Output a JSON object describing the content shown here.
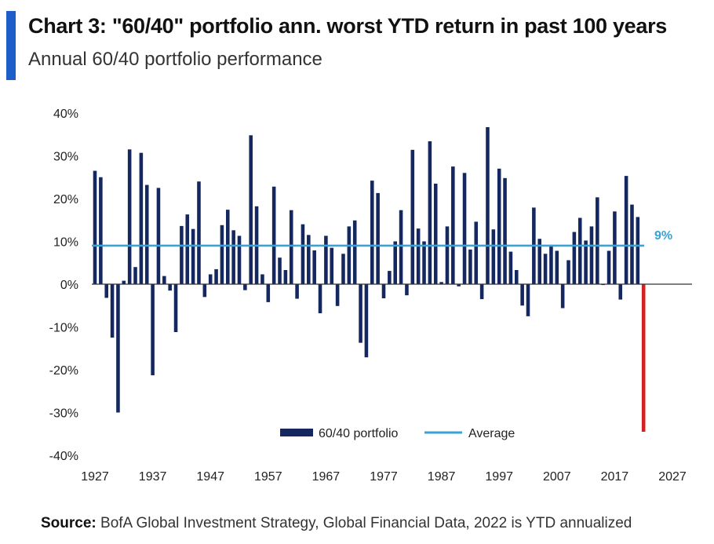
{
  "header": {
    "title": "Chart 3: \"60/40\" portfolio ann. worst YTD return in past 100 years",
    "subtitle": "Annual 60/40 portfolio performance",
    "accent_color": "#1f5ec9"
  },
  "footer": {
    "source_label": "Source:",
    "source_text": " BofA Global Investment Strategy, Global Financial Data, 2022 is YTD annualized"
  },
  "chart_data": {
    "type": "bar",
    "x": [
      1927,
      1928,
      1929,
      1930,
      1931,
      1932,
      1933,
      1934,
      1935,
      1936,
      1937,
      1938,
      1939,
      1940,
      1941,
      1942,
      1943,
      1944,
      1945,
      1946,
      1947,
      1948,
      1949,
      1950,
      1951,
      1952,
      1953,
      1954,
      1955,
      1956,
      1957,
      1958,
      1959,
      1960,
      1961,
      1962,
      1963,
      1964,
      1965,
      1966,
      1967,
      1968,
      1969,
      1970,
      1971,
      1972,
      1973,
      1974,
      1975,
      1976,
      1977,
      1978,
      1979,
      1980,
      1981,
      1982,
      1983,
      1984,
      1985,
      1986,
      1987,
      1988,
      1989,
      1990,
      1991,
      1992,
      1993,
      1994,
      1995,
      1996,
      1997,
      1998,
      1999,
      2000,
      2001,
      2002,
      2003,
      2004,
      2005,
      2006,
      2007,
      2008,
      2009,
      2010,
      2011,
      2012,
      2013,
      2014,
      2015,
      2016,
      2017,
      2018,
      2019,
      2020,
      2021,
      2022
    ],
    "series": [
      {
        "name": "60/40 portfolio",
        "color": "#14275e",
        "values": [
          26.5,
          25,
          -3.2,
          -12.5,
          -30,
          0.8,
          31.5,
          4,
          30.7,
          23.2,
          -21.3,
          22.5,
          1.9,
          -1.5,
          -11.2,
          13.6,
          16.3,
          12.9,
          24,
          -3,
          2.3,
          3.5,
          13.8,
          17.4,
          12.6,
          11.3,
          -1.4,
          34.8,
          18.2,
          2.3,
          -4.2,
          22.8,
          6.2,
          3.3,
          17.3,
          -3.4,
          14,
          11.5,
          7.9,
          -6.8,
          11.3,
          8.5,
          -5.1,
          7.1,
          13.5,
          14.9,
          -13.7,
          -17.1,
          24.2,
          21.3,
          -3.3,
          3.1,
          10,
          17.3,
          -2.6,
          31.4,
          13,
          10,
          33.4,
          23.5,
          0.5,
          13.5,
          27.5,
          -0.5,
          26,
          8.1,
          14.6,
          -3.5,
          36.7,
          12.8,
          27,
          24.8,
          7.6,
          3.3,
          -5,
          -7.5,
          17.9,
          10.6,
          7.1,
          9.2,
          7.8,
          -5.6,
          5.6,
          12.2,
          15.5,
          10.2,
          13.5,
          20.3,
          -0.2,
          7.8,
          17,
          -3.6,
          25.3,
          18.6,
          15.7,
          -34.5
        ]
      },
      {
        "name": "Average",
        "color": "#3aa3d4",
        "value": 9
      }
    ],
    "highlight": {
      "year": 2022,
      "color": "#d42020"
    },
    "average_label": "9%",
    "title": "",
    "xlabel": "",
    "ylabel": "",
    "ylim": [
      -40,
      40
    ],
    "xlim": [
      1927,
      2027
    ],
    "yticks": [
      40,
      30,
      20,
      10,
      0,
      -10,
      -20,
      -30,
      -40
    ],
    "ytick_labels": [
      "40%",
      "30%",
      "20%",
      "10%",
      "0%",
      "-10%",
      "-20%",
      "-30%",
      "-40%"
    ],
    "xticks": [
      1927,
      1937,
      1947,
      1957,
      1967,
      1977,
      1987,
      1997,
      2007,
      2017,
      2027
    ],
    "xtick_labels": [
      "1927",
      "1937",
      "1947",
      "1957",
      "1967",
      "1977",
      "1987",
      "1997",
      "2007",
      "2017",
      "2027"
    ],
    "grid": false,
    "legend": {
      "position": "bottom-center",
      "entries": [
        "60/40 portfolio",
        "Average"
      ]
    }
  }
}
